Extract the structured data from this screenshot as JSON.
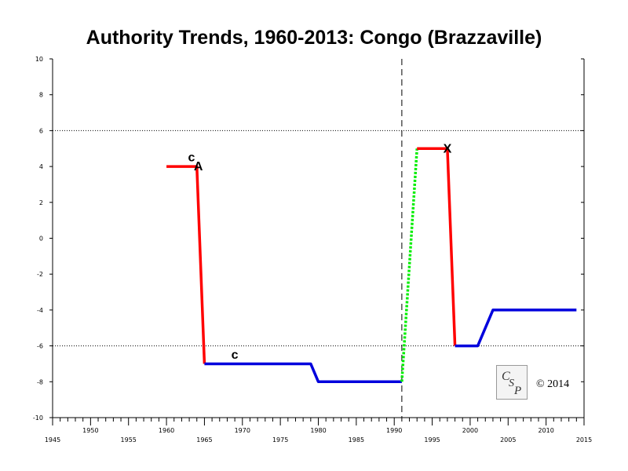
{
  "chart_data": {
    "type": "line",
    "title": "Authority Trends, 1960-2013: Congo (Brazzaville)",
    "xlim": [
      1945,
      2015
    ],
    "ylim": [
      -10,
      10
    ],
    "x_ticks_major": [
      1945,
      1950,
      1955,
      1960,
      1965,
      1970,
      1975,
      1980,
      1985,
      1990,
      1995,
      2000,
      2005,
      2010,
      2015
    ],
    "y_ticks": [
      10,
      8,
      6,
      4,
      2,
      0,
      -2,
      -4,
      -6,
      -8,
      -10
    ],
    "reference_lines_y": [
      6,
      -6
    ],
    "vertical_marker_x": 1991,
    "colors": {
      "red": "#ff0000",
      "blue": "#0000dd",
      "green": "#00ee00",
      "axis": "#000000"
    },
    "series": [
      {
        "style": "red",
        "points": [
          [
            1960,
            4
          ],
          [
            1964,
            4
          ],
          [
            1965,
            -7
          ]
        ]
      },
      {
        "style": "blue",
        "points": [
          [
            1965,
            -7
          ],
          [
            1979,
            -7
          ],
          [
            1980,
            -8
          ],
          [
            1991,
            -8
          ]
        ]
      },
      {
        "style": "green-dotted",
        "points": [
          [
            1991,
            -8
          ],
          [
            1993,
            5
          ]
        ]
      },
      {
        "style": "red",
        "points": [
          [
            1993,
            5
          ],
          [
            1997,
            5
          ],
          [
            1998,
            -6
          ]
        ]
      },
      {
        "style": "blue",
        "points": [
          [
            1998,
            -6
          ],
          [
            2001,
            -6
          ],
          [
            2003,
            -4
          ],
          [
            2014,
            -4
          ]
        ]
      }
    ],
    "annotations": [
      {
        "text": "c",
        "x": 1963.3,
        "y": 4.5
      },
      {
        "text": "A",
        "x": 1964.2,
        "y": 4.0
      },
      {
        "text": "c",
        "x": 1969.0,
        "y": -6.5
      },
      {
        "text": "X",
        "x": 1997.0,
        "y": 5.0
      }
    ]
  },
  "logo": {
    "text": "CSP"
  },
  "copyright": "© 2014"
}
